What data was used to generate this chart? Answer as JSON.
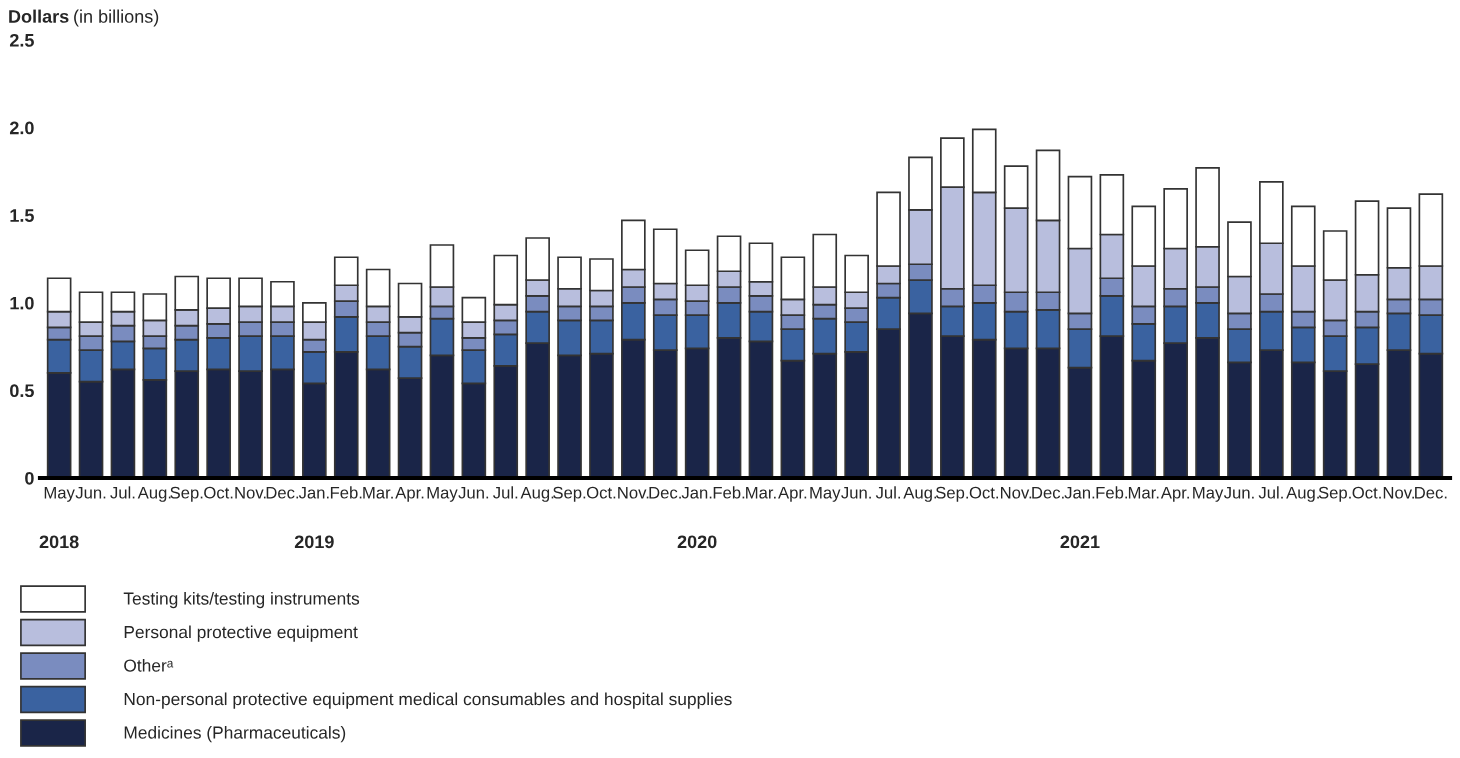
{
  "chart_data": {
    "type": "bar",
    "stacked": true,
    "ylabel": "Dollars (in billions)",
    "categories": [
      "May\n2018",
      "Jun.",
      "Jul.",
      "Aug.",
      "Sep.",
      "Oct.",
      "Nov.",
      "Dec.",
      "Jan.\n2019",
      "Feb.",
      "Mar.",
      "Apr.",
      "May",
      "Jun.",
      "Jul.",
      "Aug.",
      "Sep.",
      "Oct.",
      "Nov.",
      "Dec.",
      "Jan.\n2020",
      "Feb.",
      "Mar.",
      "Apr.",
      "May",
      "Jun.",
      "Jul.",
      "Aug.",
      "Sep.",
      "Oct.",
      "Nov.",
      "Dec.",
      "Jan.\n2021",
      "Feb.",
      "Mar.",
      "Apr.",
      "May",
      "Jun.",
      "Jul.",
      "Aug.",
      "Sep.",
      "Oct.",
      "Nov.",
      "Dec."
    ],
    "ylim": [
      0,
      2.5
    ],
    "yticks": [
      0,
      {
        "value": 0.5,
        "label": "0.5"
      },
      {
        "value": 1,
        "label": "1.0"
      },
      {
        "value": 1.5,
        "label": "1.5"
      },
      {
        "value": 2,
        "label": "2.0"
      },
      {
        "value": 2.5,
        "label": "2.5"
      }
    ],
    "grid": false,
    "legend": "bottom",
    "series": [
      {
        "name": "Medicines (Pharmaceuticals)",
        "color": "#1a2548",
        "values": [
          0.6,
          0.55,
          0.62,
          0.56,
          0.61,
          0.62,
          0.61,
          0.62,
          0.54,
          0.72,
          0.62,
          0.57,
          0.7,
          0.54,
          0.64,
          0.77,
          0.7,
          0.71,
          0.79,
          0.73,
          0.74,
          0.8,
          0.78,
          0.67,
          0.71,
          0.72,
          0.85,
          0.94,
          0.81,
          0.79,
          0.74,
          0.74,
          0.63,
          0.81,
          0.67,
          0.77,
          0.8,
          0.66,
          0.73,
          0.66,
          0.61,
          0.65,
          0.73,
          0.71
        ]
      },
      {
        "name": "Non-personal protective equipment medical consumables and hospital supplies",
        "color": "#3a62a0",
        "values": [
          0.19,
          0.18,
          0.16,
          0.18,
          0.18,
          0.18,
          0.2,
          0.19,
          0.18,
          0.2,
          0.19,
          0.18,
          0.21,
          0.19,
          0.18,
          0.18,
          0.2,
          0.19,
          0.21,
          0.2,
          0.19,
          0.2,
          0.17,
          0.18,
          0.2,
          0.17,
          0.18,
          0.19,
          0.17,
          0.21,
          0.21,
          0.22,
          0.22,
          0.23,
          0.21,
          0.21,
          0.2,
          0.19,
          0.22,
          0.2,
          0.2,
          0.21,
          0.21,
          0.22
        ]
      },
      {
        "name": "Otherᵃ",
        "color": "#7a8cbf",
        "values": [
          0.07,
          0.08,
          0.09,
          0.07,
          0.08,
          0.08,
          0.08,
          0.08,
          0.07,
          0.09,
          0.08,
          0.08,
          0.07,
          0.07,
          0.08,
          0.09,
          0.08,
          0.08,
          0.09,
          0.09,
          0.08,
          0.09,
          0.09,
          0.08,
          0.08,
          0.08,
          0.08,
          0.09,
          0.1,
          0.1,
          0.11,
          0.1,
          0.09,
          0.1,
          0.1,
          0.1,
          0.09,
          0.09,
          0.1,
          0.09,
          0.09,
          0.09,
          0.08,
          0.09
        ]
      },
      {
        "name": "Personal protective equipment",
        "color": "#b8bedd",
        "values": [
          0.09,
          0.08,
          0.08,
          0.09,
          0.09,
          0.09,
          0.09,
          0.09,
          0.1,
          0.09,
          0.09,
          0.09,
          0.11,
          0.09,
          0.09,
          0.09,
          0.1,
          0.09,
          0.1,
          0.09,
          0.09,
          0.09,
          0.08,
          0.09,
          0.1,
          0.09,
          0.1,
          0.31,
          0.58,
          0.53,
          0.48,
          0.41,
          0.37,
          0.25,
          0.23,
          0.23,
          0.23,
          0.21,
          0.29,
          0.26,
          0.23,
          0.21,
          0.18,
          0.19
        ]
      },
      {
        "name": "Testing kits/testing instruments",
        "color": "#ffffff",
        "values": [
          0.19,
          0.17,
          0.11,
          0.15,
          0.19,
          0.17,
          0.16,
          0.14,
          0.11,
          0.16,
          0.21,
          0.19,
          0.24,
          0.14,
          0.28,
          0.24,
          0.18,
          0.18,
          0.28,
          0.31,
          0.2,
          0.2,
          0.22,
          0.24,
          0.3,
          0.21,
          0.42,
          0.3,
          0.28,
          0.36,
          0.24,
          0.4,
          0.41,
          0.34,
          0.34,
          0.34,
          0.45,
          0.31,
          0.35,
          0.34,
          0.28,
          0.42,
          0.34,
          0.41
        ]
      }
    ]
  }
}
